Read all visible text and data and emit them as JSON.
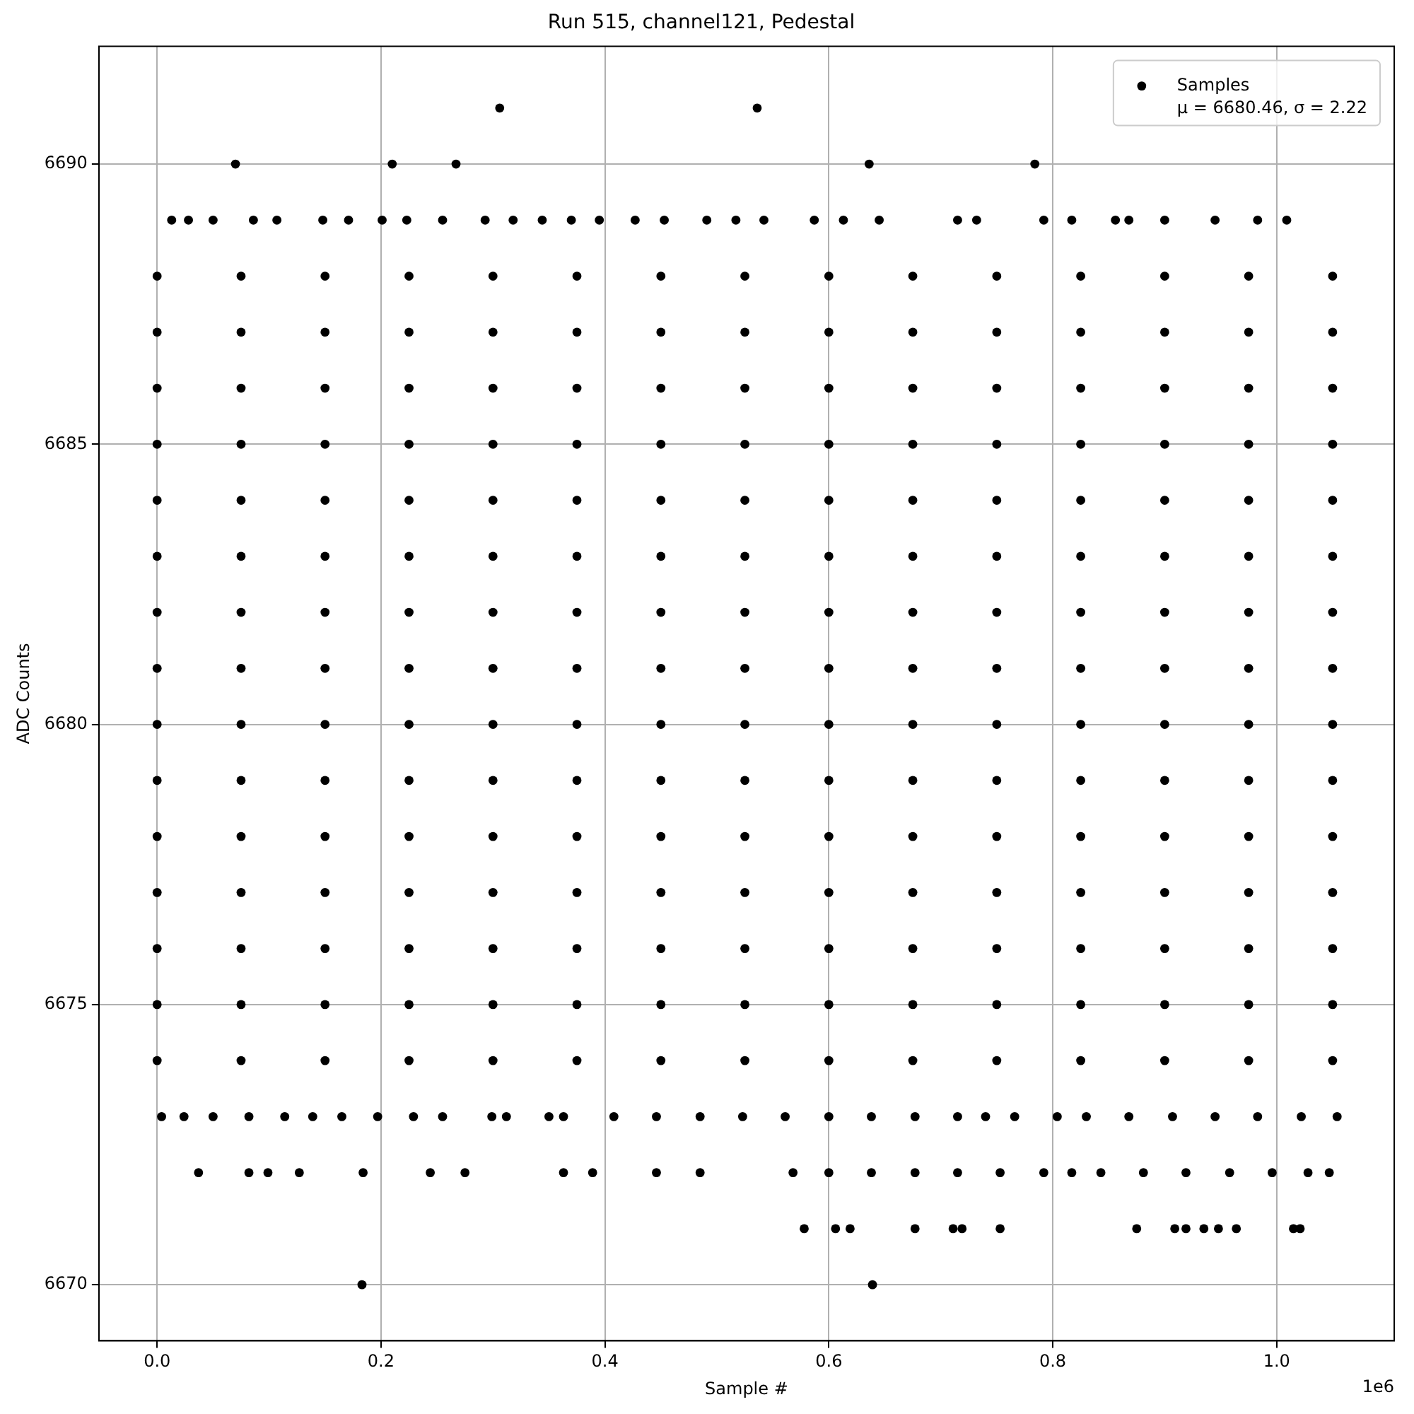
{
  "chart_data": {
    "type": "scatter",
    "title": "Run 515, channel121, Pedestal",
    "xlabel": "Sample #",
    "ylabel": "ADC Counts",
    "xlim": [
      -0.052,
      1.105
    ],
    "ylim": [
      6669,
      6692.1
    ],
    "xticks": [
      {
        "value": 0,
        "label": "0.0"
      },
      0.2,
      0.4,
      0.6,
      0.8,
      {
        "value": 1,
        "label": "1.0"
      }
    ],
    "yticks": [
      6670,
      6675,
      6680,
      6685,
      6690
    ],
    "grid": true,
    "legend": "top right",
    "marker": "circle",
    "annotations": [
      "1e6"
    ],
    "series": [
      {
        "name": "Samples\nμ = 6680.46, σ = 2.22",
        "color": "#000000",
        "x": [
          0,
          0.075,
          0.15,
          0.225,
          0.3,
          0.375,
          0.45,
          0.525,
          0.6,
          0.675,
          0.75,
          0.825,
          0.9,
          0.975,
          1.05,
          0,
          0.075,
          0.15,
          0.225,
          0.3,
          0.375,
          0.45,
          0.525,
          0.6,
          0.675,
          0.75,
          0.825,
          0.9,
          0.975,
          1.05,
          0,
          0.075,
          0.15,
          0.225,
          0.3,
          0.375,
          0.45,
          0.525,
          0.6,
          0.675,
          0.75,
          0.825,
          0.9,
          0.975,
          1.05,
          0,
          0.075,
          0.15,
          0.225,
          0.3,
          0.375,
          0.45,
          0.525,
          0.6,
          0.675,
          0.75,
          0.825,
          0.9,
          0.975,
          1.05,
          0,
          0.075,
          0.15,
          0.225,
          0.3,
          0.375,
          0.45,
          0.525,
          0.6,
          0.675,
          0.75,
          0.825,
          0.9,
          0.975,
          1.05,
          0,
          0.075,
          0.15,
          0.225,
          0.3,
          0.375,
          0.45,
          0.525,
          0.6,
          0.675,
          0.75,
          0.825,
          0.9,
          0.975,
          1.05,
          0,
          0.075,
          0.15,
          0.225,
          0.3,
          0.375,
          0.45,
          0.525,
          0.6,
          0.675,
          0.75,
          0.825,
          0.9,
          0.975,
          1.05,
          0,
          0.075,
          0.15,
          0.225,
          0.3,
          0.375,
          0.45,
          0.525,
          0.6,
          0.675,
          0.75,
          0.825,
          0.9,
          0.975,
          1.05,
          0,
          0.075,
          0.15,
          0.225,
          0.3,
          0.375,
          0.45,
          0.525,
          0.6,
          0.675,
          0.75,
          0.825,
          0.9,
          0.975,
          1.05,
          0,
          0.075,
          0.15,
          0.225,
          0.3,
          0.375,
          0.45,
          0.525,
          0.6,
          0.675,
          0.75,
          0.825,
          0.9,
          0.975,
          1.05,
          0,
          0.075,
          0.15,
          0.225,
          0.3,
          0.375,
          0.45,
          0.525,
          0.6,
          0.675,
          0.75,
          0.825,
          0.9,
          0.975,
          1.05,
          0,
          0.075,
          0.15,
          0.225,
          0.3,
          0.375,
          0.45,
          0.525,
          0.6,
          0.675,
          0.75,
          0.825,
          0.9,
          0.975,
          1.05,
          0,
          0.075,
          0.15,
          0.225,
          0.3,
          0.375,
          0.45,
          0.525,
          0.6,
          0.675,
          0.75,
          0.825,
          0.9,
          0.975,
          1.05,
          0,
          0.075,
          0.15,
          0.225,
          0.3,
          0.375,
          0.45,
          0.525,
          0.6,
          0.675,
          0.75,
          0.825,
          0.9,
          0.975,
          1.05,
          0,
          0.075,
          0.15,
          0.225,
          0.3,
          0.375,
          0.45,
          0.525,
          0.6,
          0.675,
          0.75,
          0.825,
          0.9,
          0.975,
          1.05,
          0.306,
          0.536,
          0.07,
          0.21,
          0.267,
          0.636,
          0.784,
          0.183,
          0.639,
          0.013,
          0.028,
          0.05,
          0.086,
          0.107,
          0.148,
          0.171,
          0.201,
          0.223,
          0.255,
          0.293,
          0.318,
          0.344,
          0.37,
          0.395,
          0.427,
          0.453,
          0.491,
          0.517,
          0.542,
          0.587,
          0.613,
          0.645,
          0.715,
          0.732,
          0.792,
          0.817,
          0.856,
          0.868,
          0.9,
          0.945,
          0.983,
          1.009,
          0.037,
          0.082,
          0.099,
          0.127,
          0.184,
          0.244,
          0.275,
          0.363,
          0.389,
          0.446,
          0.485,
          0.568,
          0.6,
          0.638,
          0.677,
          0.715,
          0.753,
          0.792,
          0.817,
          0.843,
          0.881,
          0.919,
          0.958,
          0.996,
          1.028,
          1.047,
          0.578,
          0.606,
          0.619,
          0.677,
          0.711,
          0.719,
          0.753,
          0.875,
          0.909,
          0.919,
          0.935,
          0.948,
          0.964,
          1.015,
          1.021,
          0.004,
          0.024,
          0.05,
          0.082,
          0.114,
          0.139,
          0.165,
          0.197,
          0.229,
          0.255,
          0.299,
          0.312,
          0.35,
          0.363,
          0.408,
          0.446,
          0.485,
          0.523,
          0.561,
          0.6,
          0.638,
          0.677,
          0.715,
          0.74,
          0.766,
          0.804,
          0.83,
          0.868,
          0.907,
          0.945,
          0.983,
          1.022,
          1.054
        ],
        "values": [
          6688,
          6688,
          6688,
          6688,
          6688,
          6688,
          6688,
          6688,
          6688,
          6688,
          6688,
          6688,
          6688,
          6688,
          6688,
          6687,
          6687,
          6687,
          6687,
          6687,
          6687,
          6687,
          6687,
          6687,
          6687,
          6687,
          6687,
          6687,
          6687,
          6687,
          6686,
          6686,
          6686,
          6686,
          6686,
          6686,
          6686,
          6686,
          6686,
          6686,
          6686,
          6686,
          6686,
          6686,
          6686,
          6685,
          6685,
          6685,
          6685,
          6685,
          6685,
          6685,
          6685,
          6685,
          6685,
          6685,
          6685,
          6685,
          6685,
          6685,
          6684,
          6684,
          6684,
          6684,
          6684,
          6684,
          6684,
          6684,
          6684,
          6684,
          6684,
          6684,
          6684,
          6684,
          6684,
          6683,
          6683,
          6683,
          6683,
          6683,
          6683,
          6683,
          6683,
          6683,
          6683,
          6683,
          6683,
          6683,
          6683,
          6683,
          6682,
          6682,
          6682,
          6682,
          6682,
          6682,
          6682,
          6682,
          6682,
          6682,
          6682,
          6682,
          6682,
          6682,
          6682,
          6681,
          6681,
          6681,
          6681,
          6681,
          6681,
          6681,
          6681,
          6681,
          6681,
          6681,
          6681,
          6681,
          6681,
          6681,
          6680,
          6680,
          6680,
          6680,
          6680,
          6680,
          6680,
          6680,
          6680,
          6680,
          6680,
          6680,
          6680,
          6680,
          6680,
          6679,
          6679,
          6679,
          6679,
          6679,
          6679,
          6679,
          6679,
          6679,
          6679,
          6679,
          6679,
          6679,
          6679,
          6679,
          6678,
          6678,
          6678,
          6678,
          6678,
          6678,
          6678,
          6678,
          6678,
          6678,
          6678,
          6678,
          6678,
          6678,
          6678,
          6677,
          6677,
          6677,
          6677,
          6677,
          6677,
          6677,
          6677,
          6677,
          6677,
          6677,
          6677,
          6677,
          6677,
          6677,
          6676,
          6676,
          6676,
          6676,
          6676,
          6676,
          6676,
          6676,
          6676,
          6676,
          6676,
          6676,
          6676,
          6676,
          6676,
          6675,
          6675,
          6675,
          6675,
          6675,
          6675,
          6675,
          6675,
          6675,
          6675,
          6675,
          6675,
          6675,
          6675,
          6675,
          6674,
          6674,
          6674,
          6674,
          6674,
          6674,
          6674,
          6674,
          6674,
          6674,
          6674,
          6674,
          6674,
          6674,
          6674,
          6691,
          6691,
          6690,
          6690,
          6690,
          6690,
          6690,
          6670,
          6670,
          6689,
          6689,
          6689,
          6689,
          6689,
          6689,
          6689,
          6689,
          6689,
          6689,
          6689,
          6689,
          6689,
          6689,
          6689,
          6689,
          6689,
          6689,
          6689,
          6689,
          6689,
          6689,
          6689,
          6689,
          6689,
          6689,
          6689,
          6689,
          6689,
          6689,
          6689,
          6689,
          6689,
          6672,
          6672,
          6672,
          6672,
          6672,
          6672,
          6672,
          6672,
          6672,
          6672,
          6672,
          6672,
          6672,
          6672,
          6672,
          6672,
          6672,
          6672,
          6672,
          6672,
          6672,
          6672,
          6672,
          6672,
          6672,
          6672,
          6671,
          6671,
          6671,
          6671,
          6671,
          6671,
          6671,
          6671,
          6671,
          6671,
          6671,
          6671,
          6671,
          6671,
          6671,
          6673,
          6673,
          6673,
          6673,
          6673,
          6673,
          6673,
          6673,
          6673,
          6673,
          6673,
          6673,
          6673,
          6673,
          6673,
          6673,
          6673,
          6673,
          6673,
          6673,
          6673,
          6673,
          6673,
          6673,
          6673,
          6673,
          6673,
          6673,
          6673,
          6673,
          6673,
          6673,
          6673
        ]
      }
    ]
  }
}
